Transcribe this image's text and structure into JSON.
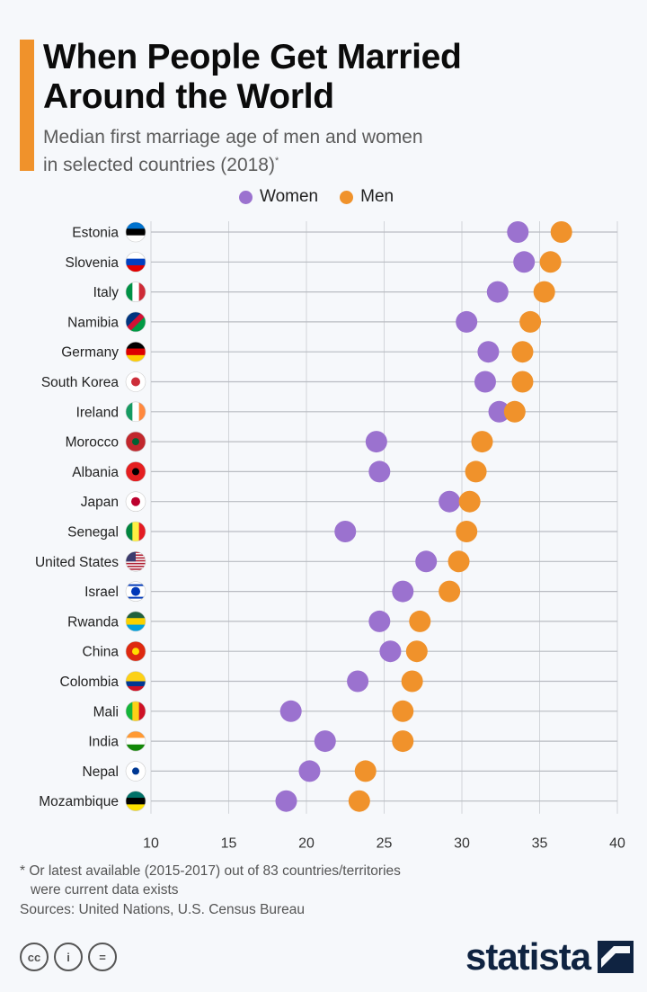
{
  "title_line1": "When People Get Married",
  "title_line2": "Around the World",
  "subtitle_line1": "Median first marriage age of men and women",
  "subtitle_line2": "in selected countries (2018)",
  "subtitle_mark": "*",
  "footnote_line1": "* Or latest available (2015-2017) out of 83 countries/territories",
  "footnote_line2": "were current data exists",
  "sources": "Sources: United Nations, U.S. Census Bureau",
  "brand": "statista",
  "license_icons": [
    "cc-icon",
    "attribution-icon",
    "no-derivatives-icon"
  ],
  "colors": {
    "women": "#9b72cf",
    "men": "#f0922b",
    "accent": "#f0922b",
    "brand": "#0f2341"
  },
  "chart_data": {
    "type": "scatter",
    "orientation": "horizontal-dot-plot",
    "legend_placement": "top-center",
    "grid": true,
    "xlim": [
      10,
      40
    ],
    "xticks": [
      "10",
      "15",
      "20",
      "25",
      "30",
      "35",
      "40"
    ],
    "series": [
      {
        "name": "Women",
        "color": "#9b72cf",
        "values": [
          33.6,
          34.0,
          32.3,
          30.3,
          31.7,
          31.5,
          32.4,
          24.5,
          24.7,
          29.2,
          22.5,
          27.7,
          26.2,
          24.7,
          25.4,
          23.3,
          19.0,
          21.2,
          20.2,
          18.7
        ]
      },
      {
        "name": "Men",
        "color": "#f0922b",
        "values": [
          36.4,
          35.7,
          35.3,
          34.4,
          33.9,
          33.9,
          33.4,
          31.3,
          30.9,
          30.5,
          30.3,
          29.8,
          29.2,
          27.3,
          27.1,
          26.8,
          26.2,
          26.2,
          23.8,
          23.4
        ]
      }
    ],
    "categories": [
      "Estonia",
      "Slovenia",
      "Italy",
      "Namibia",
      "Germany",
      "South Korea",
      "Ireland",
      "Morocco",
      "Albania",
      "Japan",
      "Senegal",
      "United States",
      "Israel",
      "Rwanda",
      "China",
      "Colombia",
      "Mali",
      "India",
      "Nepal",
      "Mozambique"
    ],
    "flags": [
      {
        "dir": "h",
        "c": [
          "#0072ce",
          "#000000",
          "#ffffff"
        ]
      },
      {
        "dir": "h",
        "c": [
          "#ffffff",
          "#0040c0",
          "#e00000"
        ]
      },
      {
        "dir": "v",
        "c": [
          "#009246",
          "#ffffff",
          "#ce2b37"
        ]
      },
      {
        "dir": "d",
        "c": [
          "#003580",
          "#d21034",
          "#009a44"
        ]
      },
      {
        "dir": "h",
        "c": [
          "#000000",
          "#dd0000",
          "#ffce00"
        ]
      },
      {
        "dir": "k",
        "c": [
          "#ffffff",
          "#cd2e3a",
          "#0047a0"
        ]
      },
      {
        "dir": "v",
        "c": [
          "#169b62",
          "#ffffff",
          "#ff883e"
        ]
      },
      {
        "dir": "s",
        "c": [
          "#c1272d",
          "#c1272d",
          "#006233"
        ]
      },
      {
        "dir": "s",
        "c": [
          "#e41e20",
          "#e41e20",
          "#000000"
        ]
      },
      {
        "dir": "k",
        "c": [
          "#ffffff",
          "#bc002d",
          "#bc002d"
        ]
      },
      {
        "dir": "v",
        "c": [
          "#00853f",
          "#fdef42",
          "#e31b23"
        ]
      },
      {
        "dir": "u",
        "c": [
          "#b22234",
          "#ffffff",
          "#3c3b6e"
        ]
      },
      {
        "dir": "i",
        "c": [
          "#ffffff",
          "#0038b8",
          "#0038b8"
        ]
      },
      {
        "dir": "h",
        "c": [
          "#20603d",
          "#fad201",
          "#00a1de"
        ]
      },
      {
        "dir": "s",
        "c": [
          "#de2910",
          "#de2910",
          "#ffde00"
        ]
      },
      {
        "dir": "h",
        "c": [
          "#fcd116",
          "#fcd116",
          "#003893",
          "#ce1126"
        ]
      },
      {
        "dir": "v",
        "c": [
          "#14b53a",
          "#fcd116",
          "#ce1126"
        ]
      },
      {
        "dir": "h",
        "c": [
          "#ff9933",
          "#ffffff",
          "#138808"
        ]
      },
      {
        "dir": "s",
        "c": [
          "#ffffff",
          "#dc143c",
          "#003893"
        ]
      },
      {
        "dir": "h",
        "c": [
          "#007168",
          "#000000",
          "#fce100"
        ]
      }
    ]
  }
}
